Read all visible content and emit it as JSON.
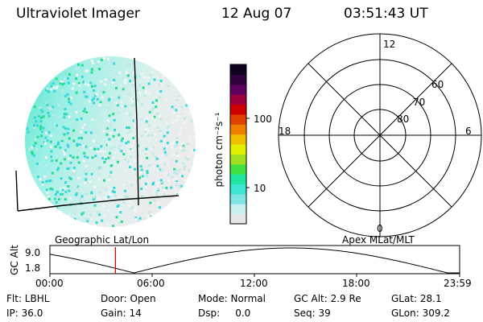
{
  "header": {
    "instrument": "Ultraviolet Imager",
    "date": "12 Aug 07",
    "time": "03:51:43 UT"
  },
  "colorbar": {
    "unit_label": "photon cm⁻²s⁻¹",
    "ticks": [
      "100",
      "10"
    ],
    "colors": [
      "#e6e6e6",
      "#c8f0f0",
      "#7fe6e6",
      "#3ce6d2",
      "#20e6a0",
      "#40e040",
      "#a0e020",
      "#e0f000",
      "#f0c000",
      "#f08000",
      "#e04000",
      "#d00000",
      "#a00040",
      "#600060",
      "#300040",
      "#100020"
    ]
  },
  "polar": {
    "mlt_labels": {
      "top": "12",
      "left": "18",
      "right": "6",
      "bottom": "0"
    },
    "lat_labels": [
      "60",
      "70",
      "80"
    ]
  },
  "timeline": {
    "left_label": "Geographic Lat/Lon",
    "right_label": "Apex MLat/MLT",
    "axis_title": "GC Alt",
    "y_ticks": [
      "9.0",
      "1.8"
    ],
    "x_ticks": [
      "00:00",
      "06:00",
      "12:00",
      "18:00",
      "23:59"
    ],
    "current_time_fraction": 0.16
  },
  "status": {
    "flt": "Flt: LBHL",
    "door": "Door: Open",
    "mode": "Mode: Normal",
    "gc_alt": "GC Alt: 2.9 Re",
    "glat": "GLat:  28.1",
    "ip": "IP: 36.0",
    "gain": "Gain: 14",
    "dsp": "Dsp:     0.0",
    "seq": "Seq: 39",
    "glon": "GLon: 309.2"
  },
  "icons": {
    "earth_image": "auroral-uv-image",
    "polar_plot": "mlat-mlt-polar-grid"
  }
}
